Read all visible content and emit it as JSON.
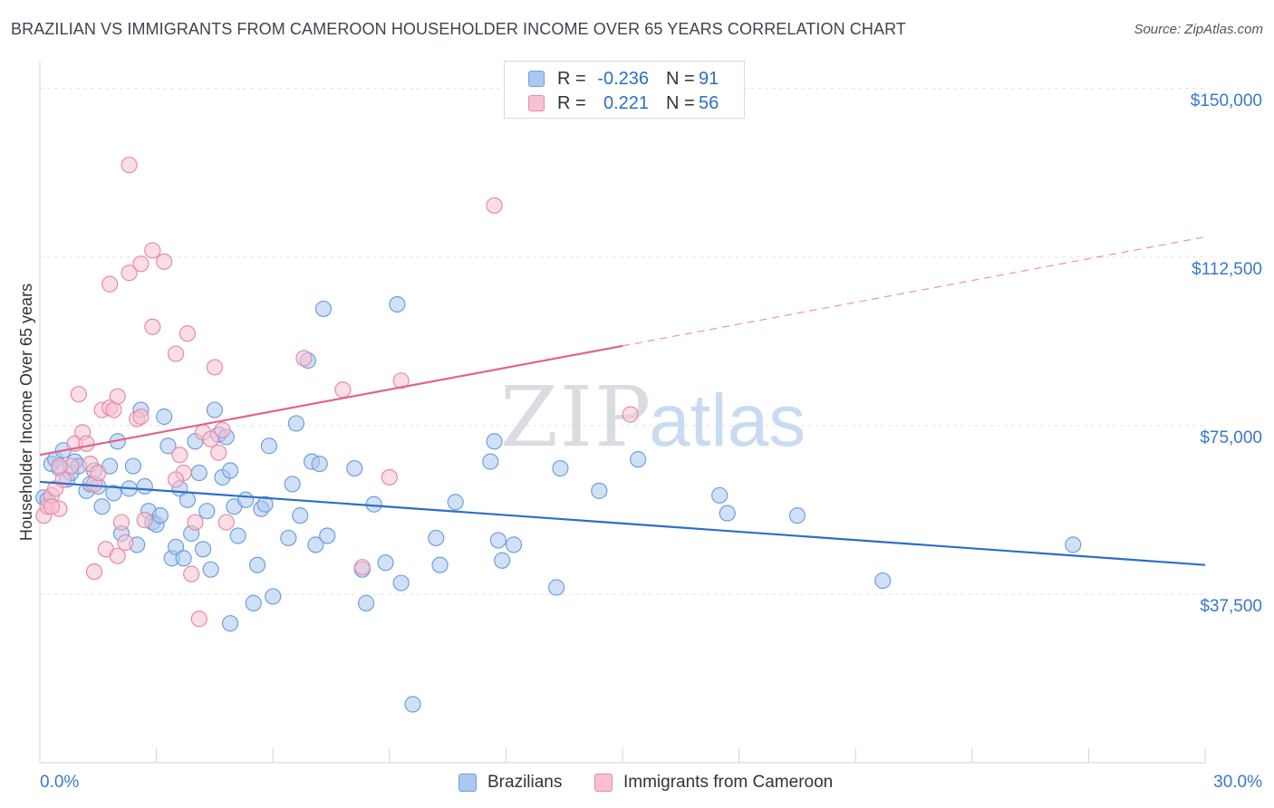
{
  "title": "BRAZILIAN VS IMMIGRANTS FROM CAMEROON HOUSEHOLDER INCOME OVER 65 YEARS CORRELATION CHART",
  "source": "Source: ZipAtlas.com",
  "watermark": {
    "zip": "ZIP",
    "atlas": "atlas"
  },
  "stats": [
    {
      "r_label": "R =",
      "r_value": "-0.236",
      "n_label": "N =",
      "n_value": "91",
      "color": "#aac9f0",
      "border": "#6f9fdd"
    },
    {
      "r_label": "R =",
      "r_value": "0.221",
      "n_label": "N =",
      "n_value": "56",
      "color": "#f7c1d1",
      "border": "#e88aa8"
    }
  ],
  "legend": [
    {
      "label": "Brazilians",
      "color": "#aac9f0",
      "border": "#6f9fdd"
    },
    {
      "label": "Immigrants from Cameroon",
      "color": "#f7c1d1",
      "border": "#e88aa8"
    }
  ],
  "chart_data": {
    "type": "scatter",
    "title": "BRAZILIAN VS IMMIGRANTS FROM CAMEROON HOUSEHOLDER INCOME OVER 65 YEARS CORRELATION CHART",
    "xlabel": "",
    "ylabel": "Householder Income Over 65 years",
    "xlim": [
      0,
      30
    ],
    "ylim": [
      0,
      154000
    ],
    "x_tick_labels": [
      "0.0%",
      "30.0%"
    ],
    "y_ticks": [
      37500,
      75000,
      112500,
      150000
    ],
    "y_tick_labels": [
      "$37,500",
      "$75,000",
      "$112,500",
      "$150,000"
    ],
    "grid": "horizontal dashed",
    "legend_position": "bottom",
    "series": [
      {
        "name": "Brazilians",
        "color": "#6f9fdd",
        "fill": "#aac9f0",
        "trend": {
          "x": [
            0,
            30
          ],
          "y": [
            62500,
            44000
          ],
          "dashed_from": null,
          "color": "#2b6fc6"
        },
        "points": [
          [
            0.1,
            59000
          ],
          [
            0.2,
            58500
          ],
          [
            0.3,
            66500
          ],
          [
            0.4,
            67500
          ],
          [
            0.5,
            65500
          ],
          [
            0.6,
            69500
          ],
          [
            0.7,
            63000
          ],
          [
            0.8,
            64500
          ],
          [
            0.9,
            67000
          ],
          [
            1.0,
            66000
          ],
          [
            1.2,
            60500
          ],
          [
            1.3,
            62000
          ],
          [
            1.4,
            65000
          ],
          [
            1.5,
            61500
          ],
          [
            1.6,
            57000
          ],
          [
            1.8,
            66000
          ],
          [
            1.9,
            60000
          ],
          [
            2.0,
            71500
          ],
          [
            2.1,
            51000
          ],
          [
            2.3,
            61000
          ],
          [
            2.4,
            66000
          ],
          [
            2.5,
            48500
          ],
          [
            2.6,
            78500
          ],
          [
            2.7,
            61500
          ],
          [
            2.8,
            56000
          ],
          [
            2.9,
            53500
          ],
          [
            3.0,
            53000
          ],
          [
            3.1,
            55000
          ],
          [
            3.2,
            77000
          ],
          [
            3.3,
            70500
          ],
          [
            3.4,
            45500
          ],
          [
            3.5,
            48000
          ],
          [
            3.6,
            61000
          ],
          [
            3.7,
            45500
          ],
          [
            3.8,
            58500
          ],
          [
            3.9,
            51000
          ],
          [
            4.0,
            71500
          ],
          [
            4.1,
            64500
          ],
          [
            4.2,
            47500
          ],
          [
            4.3,
            56000
          ],
          [
            4.4,
            43000
          ],
          [
            4.5,
            78500
          ],
          [
            4.6,
            73000
          ],
          [
            4.7,
            63500
          ],
          [
            4.8,
            72500
          ],
          [
            4.9,
            65000
          ],
          [
            5.0,
            57000
          ],
          [
            5.1,
            50500
          ],
          [
            5.3,
            58500
          ],
          [
            5.5,
            35500
          ],
          [
            5.6,
            44000
          ],
          [
            5.7,
            56500
          ],
          [
            5.8,
            57500
          ],
          [
            5.9,
            70500
          ],
          [
            6.0,
            37000
          ],
          [
            4.9,
            31000
          ],
          [
            6.4,
            50000
          ],
          [
            6.5,
            62000
          ],
          [
            6.6,
            75500
          ],
          [
            6.7,
            55000
          ],
          [
            6.9,
            89500
          ],
          [
            7.0,
            67000
          ],
          [
            7.1,
            48500
          ],
          [
            7.2,
            66500
          ],
          [
            7.3,
            101000
          ],
          [
            7.4,
            50500
          ],
          [
            8.1,
            65500
          ],
          [
            8.3,
            43000
          ],
          [
            8.4,
            35500
          ],
          [
            8.6,
            57500
          ],
          [
            8.9,
            44500
          ],
          [
            9.2,
            102000
          ],
          [
            9.3,
            40000
          ],
          [
            9.6,
            13000
          ],
          [
            10.2,
            50000
          ],
          [
            10.3,
            44000
          ],
          [
            10.7,
            58000
          ],
          [
            11.6,
            67000
          ],
          [
            11.7,
            71500
          ],
          [
            11.8,
            49500
          ],
          [
            11.9,
            45000
          ],
          [
            12.2,
            48500
          ],
          [
            13.3,
            39000
          ],
          [
            13.4,
            65500
          ],
          [
            14.4,
            60500
          ],
          [
            15.4,
            67500
          ],
          [
            17.5,
            59500
          ],
          [
            17.7,
            55500
          ],
          [
            19.5,
            55000
          ],
          [
            21.7,
            40500
          ],
          [
            26.6,
            48500
          ]
        ]
      },
      {
        "name": "Immigrants from Cameroon",
        "color": "#e88aa8",
        "fill": "#f7c1d1",
        "trend": {
          "x": [
            0,
            30
          ],
          "y": [
            68500,
            117000
          ],
          "dashed_from": 15,
          "color": "#e0648b"
        },
        "points": [
          [
            0.1,
            55000
          ],
          [
            0.2,
            57000
          ],
          [
            0.3,
            59500
          ],
          [
            0.4,
            61000
          ],
          [
            0.5,
            56500
          ],
          [
            0.6,
            63000
          ],
          [
            0.8,
            66000
          ],
          [
            0.9,
            71000
          ],
          [
            1.0,
            82000
          ],
          [
            1.1,
            73500
          ],
          [
            1.2,
            71000
          ],
          [
            1.3,
            66500
          ],
          [
            1.4,
            62000
          ],
          [
            1.5,
            64500
          ],
          [
            1.6,
            78500
          ],
          [
            1.7,
            47500
          ],
          [
            1.8,
            79000
          ],
          [
            1.9,
            78500
          ],
          [
            2.0,
            81500
          ],
          [
            2.1,
            53500
          ],
          [
            2.2,
            49000
          ],
          [
            1.4,
            42500
          ],
          [
            2.0,
            46000
          ],
          [
            2.5,
            76500
          ],
          [
            2.6,
            77000
          ],
          [
            2.7,
            54000
          ],
          [
            2.9,
            97000
          ],
          [
            2.3,
            109000
          ],
          [
            1.8,
            106500
          ],
          [
            3.2,
            111500
          ],
          [
            3.5,
            91000
          ],
          [
            3.6,
            68500
          ],
          [
            3.7,
            64500
          ],
          [
            3.8,
            95500
          ],
          [
            3.9,
            42000
          ],
          [
            4.0,
            53500
          ],
          [
            4.1,
            32000
          ],
          [
            4.2,
            73500
          ],
          [
            4.4,
            72000
          ],
          [
            4.5,
            88000
          ],
          [
            4.6,
            69000
          ],
          [
            4.7,
            74000
          ],
          [
            4.8,
            53500
          ],
          [
            2.3,
            133000
          ],
          [
            2.6,
            111000
          ],
          [
            2.9,
            114000
          ],
          [
            6.8,
            90000
          ],
          [
            7.8,
            83000
          ],
          [
            8.3,
            43500
          ],
          [
            9.0,
            63500
          ],
          [
            9.3,
            85000
          ],
          [
            11.7,
            124000
          ],
          [
            15.2,
            77500
          ],
          [
            0.3,
            57000
          ],
          [
            0.5,
            66000
          ],
          [
            3.5,
            63000
          ]
        ]
      }
    ]
  }
}
